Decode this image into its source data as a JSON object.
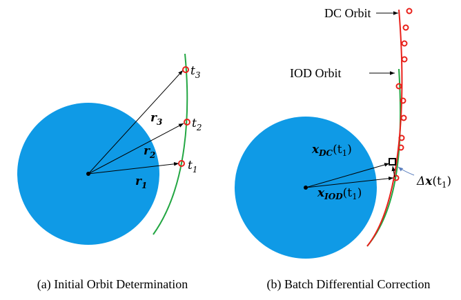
{
  "left": {
    "points": [
      {
        "base": "t",
        "sub": "3"
      },
      {
        "base": "t",
        "sub": "2"
      },
      {
        "base": "t",
        "sub": "1"
      }
    ],
    "vectors": [
      {
        "base": "r",
        "sub": "3"
      },
      {
        "base": "r",
        "sub": "2"
      },
      {
        "base": "r",
        "sub": "1"
      }
    ],
    "caption": "(a) Initial Orbit Determination"
  },
  "right": {
    "dc_orbit": "DC Orbit",
    "iod_orbit": "IOD Orbit",
    "x_dc": {
      "base": "x",
      "sub": "DC",
      "arg": "(t",
      "argsub": "1",
      "close": ")"
    },
    "x_iod": {
      "base": "x",
      "sub": "IOD",
      "arg": "(t",
      "argsub": "1",
      "close": ")"
    },
    "delta": {
      "pre": "Δ",
      "base": "x",
      "arg": "(t",
      "argsub": "1",
      "close": ")"
    },
    "caption": "(b) Batch Differential Correction"
  }
}
